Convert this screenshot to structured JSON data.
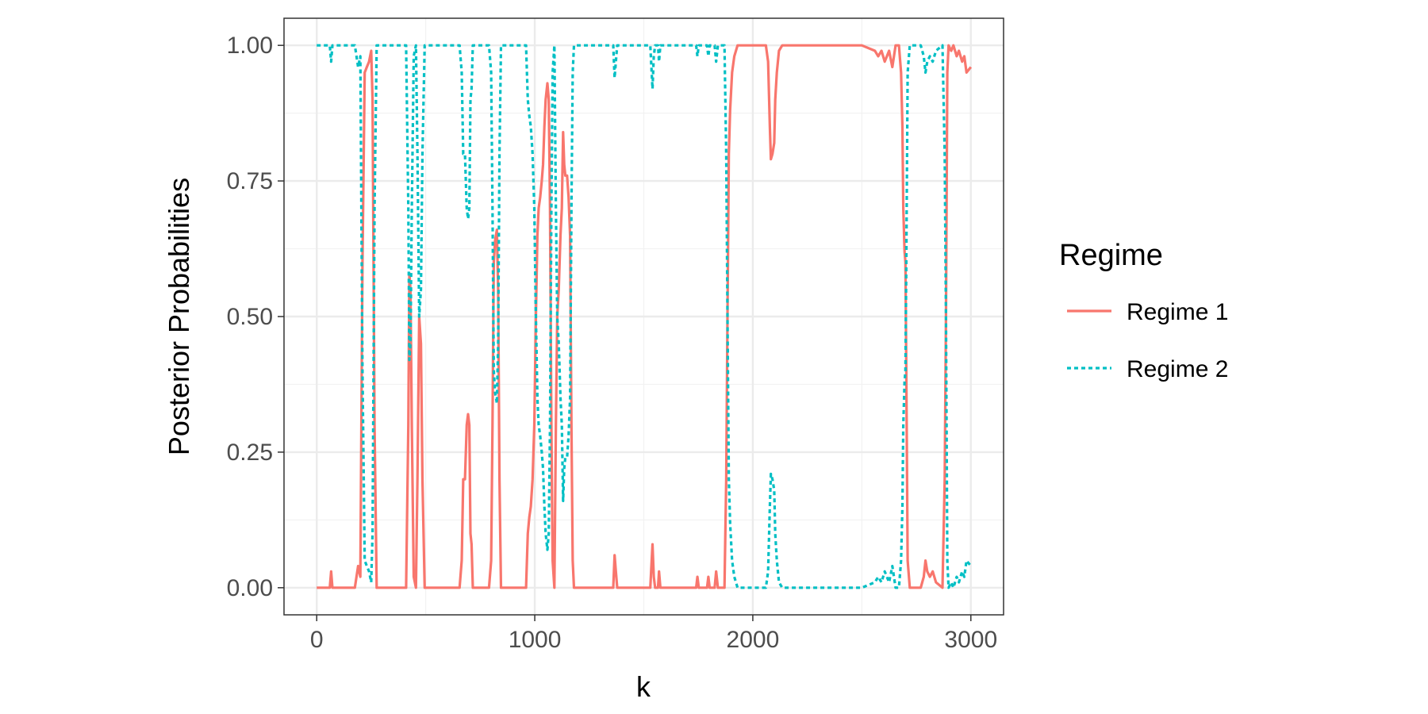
{
  "chart_data": {
    "type": "line",
    "title": "",
    "xlabel": "k",
    "ylabel": "Posterior Probabilities",
    "xlim": [
      -150,
      3150
    ],
    "ylim": [
      -0.05,
      1.05
    ],
    "x_ticks": [
      0,
      1000,
      2000,
      3000
    ],
    "x_tick_labels": [
      "0",
      "1000",
      "2000",
      "3000"
    ],
    "y_ticks": [
      0,
      0.25,
      0.5,
      0.75,
      1
    ],
    "y_tick_labels": [
      "0.00",
      "0.25",
      "0.50",
      "0.75",
      "1.00"
    ],
    "grid": true,
    "legend": {
      "title": "Regime",
      "position": "right"
    },
    "series": [
      {
        "name": "Regime 1",
        "color": "#F8766D",
        "dash": "solid",
        "points": [
          [
            0,
            0.0
          ],
          [
            60,
            0.0
          ],
          [
            66,
            0.03
          ],
          [
            72,
            0.0
          ],
          [
            120,
            0.0
          ],
          [
            175,
            0.0
          ],
          [
            190,
            0.04
          ],
          [
            200,
            0.02
          ],
          [
            210,
            0.6
          ],
          [
            220,
            0.95
          ],
          [
            230,
            0.96
          ],
          [
            240,
            0.97
          ],
          [
            250,
            0.99
          ],
          [
            256,
            0.9
          ],
          [
            265,
            0.3
          ],
          [
            275,
            0.0
          ],
          [
            310,
            0.0
          ],
          [
            410,
            0.0
          ],
          [
            420,
            0.3
          ],
          [
            425,
            0.58
          ],
          [
            430,
            0.55
          ],
          [
            436,
            0.3
          ],
          [
            445,
            0.02
          ],
          [
            455,
            0.0
          ],
          [
            462,
            0.2
          ],
          [
            470,
            0.5
          ],
          [
            478,
            0.45
          ],
          [
            485,
            0.2
          ],
          [
            495,
            0.0
          ],
          [
            600,
            0.0
          ],
          [
            655,
            0.0
          ],
          [
            665,
            0.05
          ],
          [
            672,
            0.2
          ],
          [
            680,
            0.2
          ],
          [
            688,
            0.3
          ],
          [
            694,
            0.32
          ],
          [
            700,
            0.3
          ],
          [
            705,
            0.1
          ],
          [
            710,
            0.08
          ],
          [
            716,
            0.0
          ],
          [
            790,
            0.0
          ],
          [
            800,
            0.05
          ],
          [
            806,
            0.3
          ],
          [
            812,
            0.6
          ],
          [
            818,
            0.64
          ],
          [
            826,
            0.66
          ],
          [
            832,
            0.55
          ],
          [
            838,
            0.2
          ],
          [
            845,
            0.0
          ],
          [
            940,
            0.0
          ],
          [
            960,
            0.0
          ],
          [
            968,
            0.1
          ],
          [
            975,
            0.13
          ],
          [
            982,
            0.15
          ],
          [
            990,
            0.2
          ],
          [
            998,
            0.3
          ],
          [
            1005,
            0.5
          ],
          [
            1012,
            0.65
          ],
          [
            1018,
            0.7
          ],
          [
            1025,
            0.72
          ],
          [
            1032,
            0.75
          ],
          [
            1038,
            0.78
          ],
          [
            1044,
            0.85
          ],
          [
            1050,
            0.9
          ],
          [
            1058,
            0.93
          ],
          [
            1064,
            0.9
          ],
          [
            1070,
            0.7
          ],
          [
            1076,
            0.3
          ],
          [
            1082,
            0.05
          ],
          [
            1090,
            0.0
          ],
          [
            1097,
            0.3
          ],
          [
            1103,
            0.5
          ],
          [
            1110,
            0.55
          ],
          [
            1118,
            0.65
          ],
          [
            1124,
            0.7
          ],
          [
            1130,
            0.84
          ],
          [
            1135,
            0.78
          ],
          [
            1140,
            0.76
          ],
          [
            1148,
            0.76
          ],
          [
            1155,
            0.72
          ],
          [
            1162,
            0.65
          ],
          [
            1168,
            0.3
          ],
          [
            1174,
            0.05
          ],
          [
            1180,
            0.0
          ],
          [
            1250,
            0.0
          ],
          [
            1360,
            0.0
          ],
          [
            1366,
            0.06
          ],
          [
            1372,
            0.03
          ],
          [
            1378,
            0.0
          ],
          [
            1530,
            0.0
          ],
          [
            1540,
            0.08
          ],
          [
            1546,
            0.02
          ],
          [
            1552,
            0.0
          ],
          [
            1565,
            0.0
          ],
          [
            1570,
            0.03
          ],
          [
            1576,
            0.0
          ],
          [
            1740,
            0.0
          ],
          [
            1746,
            0.02
          ],
          [
            1752,
            0.0
          ],
          [
            1790,
            0.0
          ],
          [
            1796,
            0.02
          ],
          [
            1802,
            0.0
          ],
          [
            1825,
            0.0
          ],
          [
            1832,
            0.03
          ],
          [
            1840,
            0.0
          ],
          [
            1870,
            0.0
          ],
          [
            1878,
            0.2
          ],
          [
            1884,
            0.5
          ],
          [
            1890,
            0.8
          ],
          [
            1896,
            0.88
          ],
          [
            1905,
            0.95
          ],
          [
            1915,
            0.98
          ],
          [
            1930,
            1.0
          ],
          [
            2060,
            1.0
          ],
          [
            2070,
            0.97
          ],
          [
            2078,
            0.85
          ],
          [
            2083,
            0.79
          ],
          [
            2090,
            0.8
          ],
          [
            2098,
            0.82
          ],
          [
            2103,
            0.9
          ],
          [
            2110,
            0.95
          ],
          [
            2120,
            0.99
          ],
          [
            2135,
            1.0
          ],
          [
            2500,
            1.0
          ],
          [
            2560,
            0.99
          ],
          [
            2575,
            0.98
          ],
          [
            2590,
            0.99
          ],
          [
            2605,
            0.97
          ],
          [
            2625,
            0.99
          ],
          [
            2640,
            0.96
          ],
          [
            2655,
            1.0
          ],
          [
            2670,
            1.0
          ],
          [
            2680,
            0.95
          ],
          [
            2686,
            0.85
          ],
          [
            2690,
            0.7
          ],
          [
            2696,
            0.62
          ],
          [
            2700,
            0.6
          ],
          [
            2704,
            0.4
          ],
          [
            2710,
            0.05
          ],
          [
            2720,
            0.0
          ],
          [
            2770,
            0.0
          ],
          [
            2784,
            0.02
          ],
          [
            2792,
            0.05
          ],
          [
            2800,
            0.03
          ],
          [
            2812,
            0.02
          ],
          [
            2825,
            0.03
          ],
          [
            2840,
            0.01
          ],
          [
            2870,
            0.0
          ],
          [
            2880,
            0.2
          ],
          [
            2886,
            0.5
          ],
          [
            2892,
            0.95
          ],
          [
            2898,
            1.0
          ],
          [
            2910,
            0.99
          ],
          [
            2920,
            1.0
          ],
          [
            2935,
            0.98
          ],
          [
            2945,
            0.99
          ],
          [
            2960,
            0.97
          ],
          [
            2970,
            0.98
          ],
          [
            2980,
            0.95
          ],
          [
            3000,
            0.96
          ]
        ]
      },
      {
        "name": "Regime 2",
        "color": "#00BFC4",
        "dash": "dotted",
        "points": [
          [
            0,
            1.0
          ],
          [
            60,
            1.0
          ],
          [
            66,
            0.97
          ],
          [
            72,
            1.0
          ],
          [
            120,
            1.0
          ],
          [
            175,
            1.0
          ],
          [
            190,
            0.96
          ],
          [
            200,
            0.98
          ],
          [
            210,
            0.4
          ],
          [
            220,
            0.05
          ],
          [
            230,
            0.04
          ],
          [
            240,
            0.03
          ],
          [
            250,
            0.01
          ],
          [
            256,
            0.1
          ],
          [
            265,
            0.7
          ],
          [
            275,
            1.0
          ],
          [
            310,
            1.0
          ],
          [
            410,
            1.0
          ],
          [
            420,
            0.7
          ],
          [
            425,
            0.42
          ],
          [
            430,
            0.45
          ],
          [
            436,
            0.7
          ],
          [
            445,
            0.98
          ],
          [
            455,
            1.0
          ],
          [
            462,
            0.8
          ],
          [
            470,
            0.5
          ],
          [
            478,
            0.55
          ],
          [
            485,
            0.8
          ],
          [
            495,
            1.0
          ],
          [
            600,
            1.0
          ],
          [
            655,
            1.0
          ],
          [
            665,
            0.95
          ],
          [
            672,
            0.8
          ],
          [
            680,
            0.8
          ],
          [
            688,
            0.7
          ],
          [
            694,
            0.68
          ],
          [
            700,
            0.7
          ],
          [
            705,
            0.9
          ],
          [
            710,
            0.92
          ],
          [
            716,
            1.0
          ],
          [
            790,
            1.0
          ],
          [
            800,
            0.95
          ],
          [
            806,
            0.7
          ],
          [
            812,
            0.4
          ],
          [
            818,
            0.36
          ],
          [
            826,
            0.34
          ],
          [
            832,
            0.45
          ],
          [
            838,
            0.8
          ],
          [
            845,
            1.0
          ],
          [
            940,
            1.0
          ],
          [
            960,
            1.0
          ],
          [
            968,
            0.9
          ],
          [
            975,
            0.87
          ],
          [
            982,
            0.85
          ],
          [
            990,
            0.8
          ],
          [
            998,
            0.7
          ],
          [
            1005,
            0.5
          ],
          [
            1012,
            0.35
          ],
          [
            1018,
            0.3
          ],
          [
            1025,
            0.28
          ],
          [
            1032,
            0.25
          ],
          [
            1038,
            0.22
          ],
          [
            1044,
            0.15
          ],
          [
            1050,
            0.1
          ],
          [
            1058,
            0.07
          ],
          [
            1064,
            0.1
          ],
          [
            1070,
            0.3
          ],
          [
            1076,
            0.7
          ],
          [
            1082,
            0.95
          ],
          [
            1090,
            1.0
          ],
          [
            1097,
            0.7
          ],
          [
            1103,
            0.5
          ],
          [
            1110,
            0.45
          ],
          [
            1118,
            0.35
          ],
          [
            1124,
            0.3
          ],
          [
            1130,
            0.16
          ],
          [
            1135,
            0.22
          ],
          [
            1140,
            0.24
          ],
          [
            1148,
            0.24
          ],
          [
            1155,
            0.28
          ],
          [
            1162,
            0.35
          ],
          [
            1168,
            0.7
          ],
          [
            1174,
            0.95
          ],
          [
            1180,
            1.0
          ],
          [
            1250,
            1.0
          ],
          [
            1360,
            1.0
          ],
          [
            1366,
            0.94
          ],
          [
            1372,
            0.97
          ],
          [
            1378,
            1.0
          ],
          [
            1530,
            1.0
          ],
          [
            1540,
            0.92
          ],
          [
            1546,
            0.98
          ],
          [
            1552,
            1.0
          ],
          [
            1565,
            1.0
          ],
          [
            1570,
            0.97
          ],
          [
            1576,
            1.0
          ],
          [
            1740,
            1.0
          ],
          [
            1746,
            0.98
          ],
          [
            1752,
            1.0
          ],
          [
            1790,
            1.0
          ],
          [
            1796,
            0.98
          ],
          [
            1802,
            1.0
          ],
          [
            1825,
            1.0
          ],
          [
            1832,
            0.97
          ],
          [
            1840,
            1.0
          ],
          [
            1870,
            1.0
          ],
          [
            1878,
            0.8
          ],
          [
            1884,
            0.5
          ],
          [
            1890,
            0.2
          ],
          [
            1896,
            0.12
          ],
          [
            1905,
            0.05
          ],
          [
            1915,
            0.02
          ],
          [
            1930,
            0.0
          ],
          [
            2060,
            0.0
          ],
          [
            2070,
            0.03
          ],
          [
            2078,
            0.15
          ],
          [
            2083,
            0.21
          ],
          [
            2090,
            0.2
          ],
          [
            2098,
            0.18
          ],
          [
            2103,
            0.1
          ],
          [
            2110,
            0.05
          ],
          [
            2120,
            0.01
          ],
          [
            2135,
            0.0
          ],
          [
            2500,
            0.0
          ],
          [
            2560,
            0.01
          ],
          [
            2575,
            0.02
          ],
          [
            2590,
            0.01
          ],
          [
            2605,
            0.03
          ],
          [
            2625,
            0.01
          ],
          [
            2640,
            0.04
          ],
          [
            2655,
            0.0
          ],
          [
            2670,
            0.0
          ],
          [
            2680,
            0.05
          ],
          [
            2686,
            0.15
          ],
          [
            2690,
            0.3
          ],
          [
            2696,
            0.38
          ],
          [
            2700,
            0.4
          ],
          [
            2704,
            0.6
          ],
          [
            2710,
            0.95
          ],
          [
            2720,
            1.0
          ],
          [
            2770,
            1.0
          ],
          [
            2784,
            0.98
          ],
          [
            2792,
            0.95
          ],
          [
            2800,
            0.97
          ],
          [
            2812,
            0.98
          ],
          [
            2825,
            0.97
          ],
          [
            2840,
            0.99
          ],
          [
            2870,
            1.0
          ],
          [
            2880,
            0.8
          ],
          [
            2886,
            0.5
          ],
          [
            2892,
            0.05
          ],
          [
            2898,
            0.0
          ],
          [
            2910,
            0.01
          ],
          [
            2920,
            0.0
          ],
          [
            2935,
            0.02
          ],
          [
            2945,
            0.01
          ],
          [
            2960,
            0.03
          ],
          [
            2970,
            0.02
          ],
          [
            2980,
            0.05
          ],
          [
            3000,
            0.04
          ]
        ]
      }
    ]
  }
}
